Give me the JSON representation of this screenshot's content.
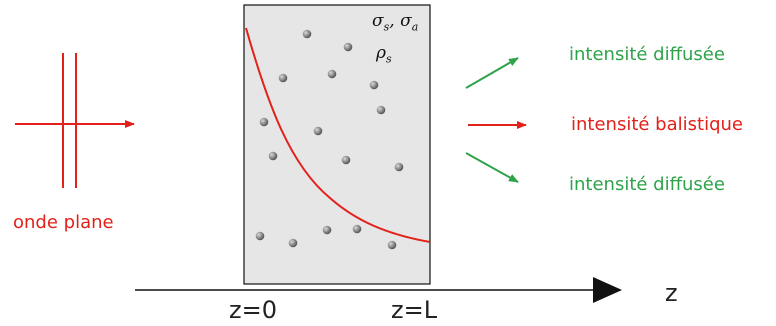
{
  "medium": {
    "params_line1": "σs , σa",
    "params_line2": "ρs",
    "sigma": "σ",
    "sub_s": "s",
    "sub_a": "a",
    "rho": "ρ",
    "comma": ","
  },
  "labels": {
    "wave": "onde plane",
    "diffuse_top": "intensité diffusée",
    "ballistic": "intensité balistique",
    "diffuse_bottom": "intensité diffusée"
  },
  "axis": {
    "name": "z",
    "tick_start": "z=0",
    "tick_end": "z=L"
  },
  "colors": {
    "red": "#e3211b",
    "green": "#2ea34a",
    "slab_fill": "#e6e6e6",
    "particle": "#8c8c8c"
  }
}
